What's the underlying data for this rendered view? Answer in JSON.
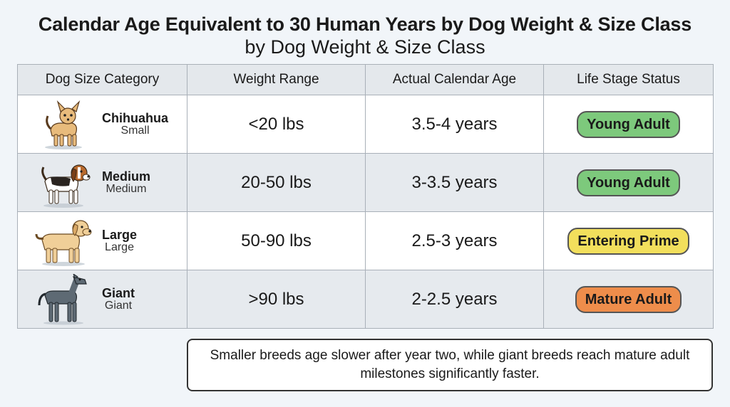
{
  "title": "Calendar Age Equivalent to 30 Human Years by Dog Weight & Size Class",
  "subtitle": "by Dog Weight & Size Class",
  "table": {
    "headers": [
      "Dog Size Category",
      "Weight Range",
      "Actual Calendar Age",
      "Life Stage Status"
    ],
    "rows": [
      {
        "name": "Chihuahua",
        "sub": "Small",
        "icon": "chihuahua-icon",
        "weight": "<20 lbs",
        "age": "3.5-4 years",
        "status": "Young Adult",
        "status_color": "#7dc97c"
      },
      {
        "name": "Medium",
        "sub": "Medium",
        "icon": "beagle-icon",
        "weight": "20-50 lbs",
        "age": "3-3.5 years",
        "status": "Young Adult",
        "status_color": "#7dc97c"
      },
      {
        "name": "Large",
        "sub": "Large",
        "icon": "labrador-icon",
        "weight": "50-90 lbs",
        "age": "2.5-3 years",
        "status": "Entering Prime",
        "status_color": "#f2df5c"
      },
      {
        "name": "Giant",
        "sub": "Giant",
        "icon": "great-dane-icon",
        "weight": ">90 lbs",
        "age": "2-2.5 years",
        "status": "Mature Adult",
        "status_color": "#ee8d4b"
      }
    ]
  },
  "note": "Smaller breeds age slower after year two, while giant breeds reach mature adult milestones significantly faster."
}
